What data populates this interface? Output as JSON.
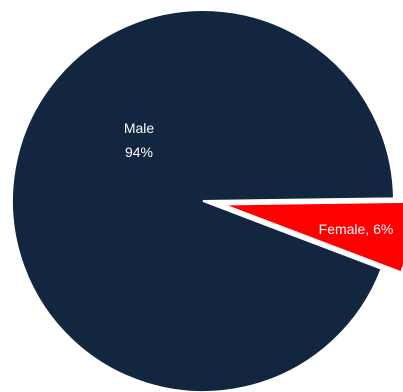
{
  "chart_data": {
    "type": "pie",
    "title": "",
    "slices": [
      {
        "label": "Male",
        "value": 94,
        "percent_label": "94%",
        "color": "#13263f",
        "exploded": false
      },
      {
        "label": "Female",
        "value": 6,
        "percent_label": "6%",
        "color": "#ff0000",
        "exploded": true
      }
    ],
    "labels": {
      "male_name": "Male",
      "male_percent": "94%",
      "female_combined": "Female, 6%"
    },
    "legend": "none"
  }
}
